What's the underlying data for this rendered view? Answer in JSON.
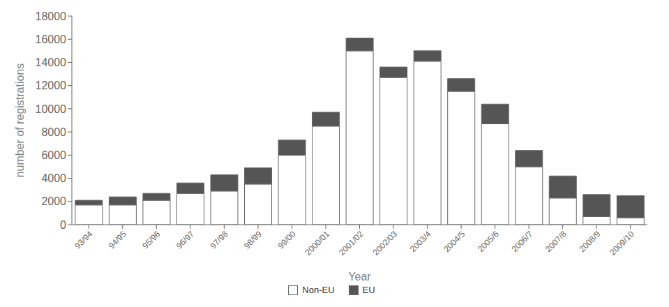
{
  "chart_data": {
    "type": "bar",
    "stacked": true,
    "xlabel": "Year",
    "ylabel": "number of registrations",
    "categories": [
      "93/94",
      "94/95",
      "95/96",
      "96/97",
      "97/98",
      "98/99",
      "99/00",
      "2000/01",
      "2001/02",
      "2002/03",
      "2003/4",
      "2004/5",
      "2005/6",
      "2006/7",
      "2007/8",
      "2008/9",
      "2009/10"
    ],
    "series": [
      {
        "name": "Non-EU",
        "color": "#ffffff",
        "values": [
          1700,
          1700,
          2100,
          2700,
          2900,
          3500,
          6000,
          8500,
          15000,
          12700,
          14100,
          11500,
          8700,
          5000,
          2300,
          700,
          600
        ]
      },
      {
        "name": "EU",
        "color": "#555555",
        "values": [
          400,
          700,
          600,
          900,
          1400,
          1400,
          1300,
          1200,
          1100,
          900,
          900,
          1100,
          1700,
          1400,
          1900,
          1900,
          1900
        ]
      }
    ],
    "ylim": [
      0,
      18000
    ],
    "yticks": [
      0,
      2000,
      4000,
      6000,
      8000,
      10000,
      12000,
      14000,
      16000,
      18000
    ],
    "grid": false,
    "legend": "bottom"
  }
}
